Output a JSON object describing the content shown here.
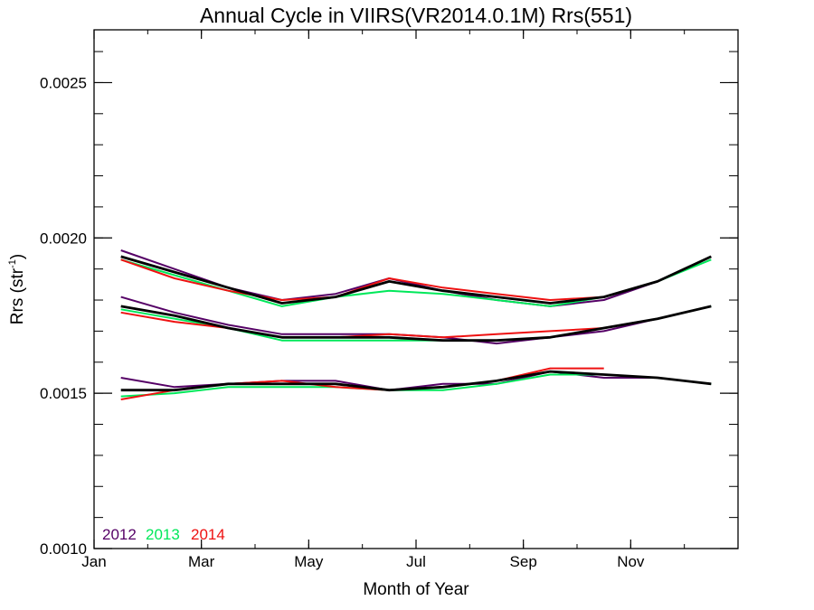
{
  "chart_data": {
    "type": "line",
    "title": "Annual Cycle in VIIRS(VR2014.0.1M) Rrs(551)",
    "xlabel": "Month of Year",
    "ylabel_main": "Rrs (str",
    "ylabel_sup": "-1",
    "ylabel_end": ")",
    "xlim": [
      0,
      12
    ],
    "ylim": [
      0.001,
      0.00267
    ],
    "x_ticks": [
      {
        "value": 0,
        "label": "Jan"
      },
      {
        "value": 2,
        "label": "Mar"
      },
      {
        "value": 4,
        "label": "May"
      },
      {
        "value": 6,
        "label": "Jul"
      },
      {
        "value": 8,
        "label": "Sep"
      },
      {
        "value": 10,
        "label": "Nov"
      }
    ],
    "y_ticks": [
      {
        "value": 0.001,
        "label": "0.0010"
      },
      {
        "value": 0.0015,
        "label": "0.0015"
      },
      {
        "value": 0.002,
        "label": "0.0020"
      },
      {
        "value": 0.0025,
        "label": "0.0025"
      }
    ],
    "legend": {
      "placement": "bottom-left",
      "entries": [
        {
          "name": "2012",
          "color": "#550066"
        },
        {
          "name": "2013",
          "color": "#00e85a"
        },
        {
          "name": "2014",
          "color": "#ee1111"
        }
      ]
    },
    "series": [
      {
        "name": "2012",
        "group": "upper",
        "color": "#550066",
        "x": [
          0.5,
          1.5,
          2.5,
          3.5,
          4.5,
          5.5,
          6.5,
          7.5,
          8.5,
          9.5,
          10.5,
          11.5
        ],
        "y": [
          0.00196,
          0.0019,
          0.00184,
          0.0018,
          0.00182,
          0.00187,
          0.00183,
          0.0018,
          0.00178,
          0.0018,
          0.00186,
          0.00194
        ]
      },
      {
        "name": "2013",
        "group": "upper",
        "color": "#00e85a",
        "x": [
          0.5,
          1.5,
          2.5,
          3.5,
          4.5,
          5.5,
          6.5,
          7.5,
          8.5,
          9.5,
          10.5,
          11.5
        ],
        "y": [
          0.00193,
          0.00188,
          0.00183,
          0.00178,
          0.00181,
          0.00183,
          0.00182,
          0.0018,
          0.00178,
          0.00181,
          0.00186,
          0.00193
        ]
      },
      {
        "name": "2014",
        "group": "upper",
        "color": "#ee1111",
        "x": [
          0.5,
          1.5,
          2.5,
          3.5,
          4.5,
          5.5,
          6.5,
          7.5,
          8.5,
          9.5
        ],
        "y": [
          0.00193,
          0.00187,
          0.00183,
          0.0018,
          0.00181,
          0.00187,
          0.00184,
          0.00182,
          0.0018,
          0.00181
        ]
      },
      {
        "name": "mean",
        "group": "upper",
        "color": "#000000",
        "x": [
          0.5,
          1.5,
          2.5,
          3.5,
          4.5,
          5.5,
          6.5,
          7.5,
          8.5,
          9.5,
          10.5,
          11.5
        ],
        "y": [
          0.00194,
          0.00189,
          0.00184,
          0.00179,
          0.00181,
          0.00186,
          0.00183,
          0.00181,
          0.00179,
          0.00181,
          0.00186,
          0.00194
        ]
      },
      {
        "name": "2012",
        "group": "middle",
        "color": "#550066",
        "x": [
          0.5,
          1.5,
          2.5,
          3.5,
          4.5,
          5.5,
          6.5,
          7.5,
          8.5,
          9.5,
          10.5,
          11.5
        ],
        "y": [
          0.00181,
          0.00176,
          0.00172,
          0.00169,
          0.00169,
          0.00169,
          0.00168,
          0.00166,
          0.00168,
          0.0017,
          0.00174,
          0.00178
        ]
      },
      {
        "name": "2013",
        "group": "middle",
        "color": "#00e85a",
        "x": [
          0.5,
          1.5,
          2.5,
          3.5,
          4.5,
          5.5,
          6.5,
          7.5,
          8.5,
          9.5,
          10.5,
          11.5
        ],
        "y": [
          0.00177,
          0.00174,
          0.00171,
          0.00167,
          0.00167,
          0.00167,
          0.00167,
          0.00167,
          0.00168,
          0.00171,
          0.00174,
          0.00178
        ]
      },
      {
        "name": "2014",
        "group": "middle",
        "color": "#ee1111",
        "x": [
          0.5,
          1.5,
          2.5,
          3.5,
          4.5,
          5.5,
          6.5,
          7.5,
          8.5,
          9.5
        ],
        "y": [
          0.00176,
          0.00173,
          0.00171,
          0.00168,
          0.00168,
          0.00169,
          0.00168,
          0.00169,
          0.0017,
          0.00171
        ]
      },
      {
        "name": "mean",
        "group": "middle",
        "color": "#000000",
        "x": [
          0.5,
          1.5,
          2.5,
          3.5,
          4.5,
          5.5,
          6.5,
          7.5,
          8.5,
          9.5,
          10.5,
          11.5
        ],
        "y": [
          0.00178,
          0.00175,
          0.00171,
          0.00168,
          0.00168,
          0.00168,
          0.00167,
          0.00167,
          0.00168,
          0.00171,
          0.00174,
          0.00178
        ]
      },
      {
        "name": "2012",
        "group": "lower",
        "color": "#550066",
        "x": [
          0.5,
          1.5,
          2.5,
          3.5,
          4.5,
          5.5,
          6.5,
          7.5,
          8.5,
          9.5,
          10.5,
          11.5
        ],
        "y": [
          0.00155,
          0.00152,
          0.00153,
          0.00154,
          0.00154,
          0.00151,
          0.00153,
          0.00153,
          0.00157,
          0.00155,
          0.00155,
          0.00153
        ]
      },
      {
        "name": "2013",
        "group": "lower",
        "color": "#00e85a",
        "x": [
          0.5,
          1.5,
          2.5,
          3.5,
          4.5,
          5.5,
          6.5,
          7.5,
          8.5,
          9.5,
          10.5,
          11.5
        ],
        "y": [
          0.00149,
          0.0015,
          0.00152,
          0.00152,
          0.00152,
          0.00151,
          0.00151,
          0.00153,
          0.00156,
          0.00156,
          0.00155,
          0.00153
        ]
      },
      {
        "name": "2014",
        "group": "lower",
        "color": "#ee1111",
        "x": [
          0.5,
          1.5,
          2.5,
          3.5,
          4.5,
          5.5,
          6.5,
          7.5,
          8.5,
          9.5
        ],
        "y": [
          0.00148,
          0.00151,
          0.00153,
          0.00154,
          0.00152,
          0.00151,
          0.00152,
          0.00154,
          0.00158,
          0.00158
        ]
      },
      {
        "name": "mean",
        "group": "lower",
        "color": "#000000",
        "x": [
          0.5,
          1.5,
          2.5,
          3.5,
          4.5,
          5.5,
          6.5,
          7.5,
          8.5,
          9.5,
          10.5,
          11.5
        ],
        "y": [
          0.00151,
          0.00151,
          0.00153,
          0.00153,
          0.00153,
          0.00151,
          0.00152,
          0.00154,
          0.00157,
          0.00156,
          0.00155,
          0.00153
        ]
      }
    ]
  }
}
